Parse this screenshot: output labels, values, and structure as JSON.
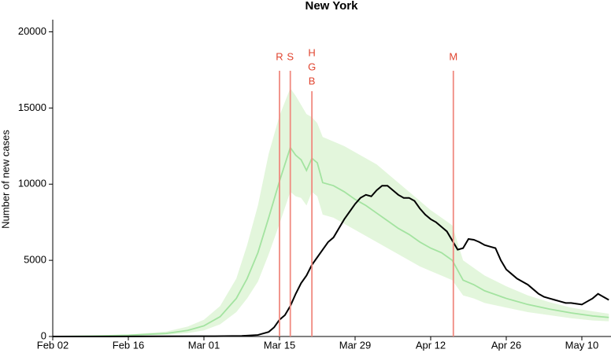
{
  "chart_data": {
    "type": "line",
    "title": "New York",
    "ylabel": "Number of new cases",
    "xlim": [
      0,
      103.4
    ],
    "ylim": [
      0,
      20800
    ],
    "xticks": [
      {
        "value": 0,
        "label": "Feb 02"
      },
      {
        "value": 14,
        "label": "Feb 16"
      },
      {
        "value": 28,
        "label": "Mar 01"
      },
      {
        "value": 42,
        "label": "Mar 15"
      },
      {
        "value": 56,
        "label": "Mar 29"
      },
      {
        "value": 70,
        "label": "Apr 12"
      },
      {
        "value": 84,
        "label": "Apr 26"
      },
      {
        "value": 98,
        "label": "May 10"
      }
    ],
    "yticks": [
      0,
      5000,
      10000,
      15000,
      20000
    ],
    "band": {
      "color": "#e3f6dc",
      "x": [
        0,
        7,
        14,
        21,
        25,
        28,
        31,
        34,
        36,
        38,
        40,
        42,
        44,
        45,
        46,
        47,
        48,
        49,
        50,
        52,
        54,
        56,
        58,
        60,
        62,
        64,
        66,
        68,
        70,
        72,
        74,
        76,
        78,
        80,
        84,
        88,
        92,
        96,
        100,
        103
      ],
      "high": [
        0,
        50,
        130,
        320,
        650,
        1100,
        2000,
        3800,
        6000,
        8600,
        12000,
        14500,
        16300,
        15800,
        15200,
        14600,
        14400,
        14000,
        13100,
        12800,
        12500,
        12100,
        11700,
        11300,
        10700,
        10100,
        9500,
        8900,
        8300,
        7800,
        7300,
        5000,
        4500,
        4000,
        3300,
        2700,
        2250,
        1900,
        1650,
        1500
      ],
      "low": [
        0,
        15,
        40,
        110,
        220,
        400,
        800,
        1600,
        2500,
        3600,
        5400,
        7400,
        9500,
        9200,
        9100,
        8600,
        9500,
        9200,
        8000,
        7800,
        7400,
        7000,
        6600,
        6200,
        5800,
        5400,
        5000,
        4600,
        4300,
        4000,
        3700,
        2700,
        2500,
        2200,
        1900,
        1600,
        1400,
        1200,
        1050,
        1000
      ]
    },
    "series": [
      {
        "color": "#a3e3a0",
        "x": [
          0,
          7,
          14,
          21,
          25,
          28,
          31,
          34,
          36,
          38,
          40,
          42,
          44,
          45,
          46,
          47,
          48,
          49,
          50,
          52,
          54,
          56,
          58,
          60,
          62,
          64,
          66,
          68,
          70,
          72,
          74,
          76,
          78,
          80,
          84,
          88,
          92,
          96,
          100,
          103
        ],
        "values": [
          0,
          30,
          80,
          200,
          400,
          700,
          1300,
          2500,
          3800,
          5500,
          7800,
          10200,
          12400,
          11900,
          11600,
          10900,
          11700,
          11400,
          10100,
          9900,
          9500,
          9000,
          8600,
          8100,
          7600,
          7100,
          6700,
          6200,
          5800,
          5500,
          5000,
          3700,
          3400,
          3000,
          2500,
          2100,
          1800,
          1550,
          1350,
          1250
        ]
      },
      {
        "color": "#000000",
        "x": [
          0,
          10,
          20,
          30,
          35,
          38,
          40,
          41,
          42,
          43,
          44,
          45,
          46,
          47,
          48,
          49,
          50,
          51,
          52,
          53,
          54,
          55,
          56,
          57,
          58,
          59,
          60,
          61,
          62,
          63,
          64,
          65,
          66,
          67,
          68,
          69,
          70,
          71,
          72,
          73,
          74,
          75,
          76,
          77,
          78,
          79,
          80,
          81,
          82,
          83,
          84,
          85,
          86,
          87,
          88,
          89,
          90,
          91,
          92,
          93,
          94,
          95,
          96,
          97,
          98,
          99,
          100,
          101,
          102,
          103
        ],
        "values": [
          0,
          0,
          10,
          20,
          40,
          100,
          300,
          600,
          1100,
          1400,
          2000,
          2800,
          3500,
          4000,
          4700,
          5200,
          5700,
          6200,
          6500,
          7100,
          7700,
          8200,
          8700,
          9100,
          9300,
          9200,
          9600,
          9900,
          9900,
          9600,
          9300,
          9100,
          9100,
          8900,
          8400,
          8000,
          7700,
          7500,
          7200,
          6900,
          6300,
          5700,
          5800,
          6400,
          6350,
          6200,
          6000,
          5900,
          5800,
          5000,
          4400,
          4100,
          3800,
          3600,
          3400,
          3100,
          2800,
          2600,
          2500,
          2400,
          2300,
          2200,
          2200,
          2150,
          2100,
          2300,
          2500,
          2800,
          2600,
          2400
        ]
      }
    ],
    "events_color": "#f08a80",
    "events": [
      {
        "x": 42,
        "labels": [
          "R"
        ]
      },
      {
        "x": 44,
        "labels": [
          "S"
        ]
      },
      {
        "x": 48,
        "labels": [
          "H",
          "G",
          "B"
        ]
      },
      {
        "x": 74.2,
        "labels": [
          "M"
        ]
      }
    ]
  }
}
